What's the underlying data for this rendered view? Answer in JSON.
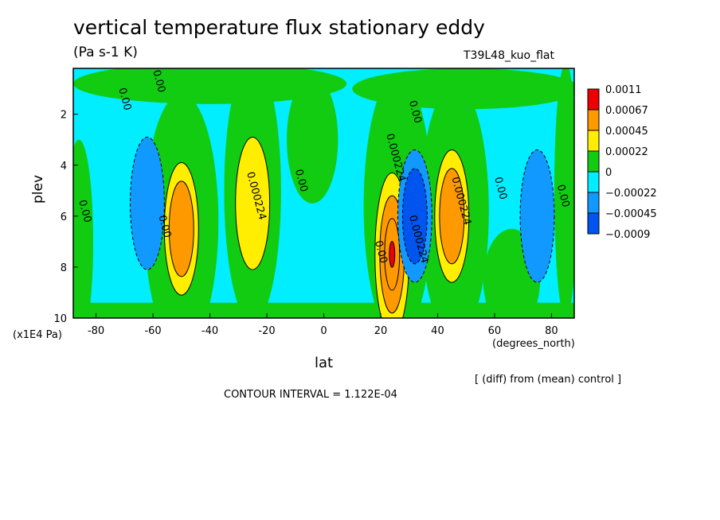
{
  "chart_data": {
    "type": "heatmap",
    "title": "vertical temperature flux stationary eddy",
    "units": "(Pa s-1 K)",
    "run_label": "T39L48_kuo_flat",
    "xlabel": "lat",
    "x_unit": "(degrees_north)",
    "ylabel": "plev",
    "y_unit": "(x1E4 Pa)",
    "xlim": [
      -88,
      88
    ],
    "ylim": [
      10,
      0.2
    ],
    "x_ticks": [
      "-80",
      "-60",
      "-40",
      "-20",
      "0",
      "20",
      "40",
      "60",
      "80"
    ],
    "y_ticks": [
      "2",
      "4",
      "6",
      "8",
      "10"
    ],
    "x_tick_values": [
      -80,
      -60,
      -40,
      -20,
      0,
      20,
      40,
      60,
      80
    ],
    "y_tick_values": [
      2,
      4,
      6,
      8,
      10
    ],
    "note": "[ (diff) from (mean) control ]",
    "contour_interval": "CONTOUR INTERVAL = 1.122E-04",
    "legend": {
      "placement": "right",
      "levels": [
        "0.0011",
        "0.00067",
        "0.00045",
        "0.00022",
        "0",
        "−0.00022",
        "−0.00045",
        "−0.0009"
      ],
      "colors": [
        "#ee0000",
        "#ff9900",
        "#ffee00",
        "#11cc11",
        "#00eeff",
        "#1199ff",
        "#0055ee"
      ]
    },
    "background_color": "#00eeff",
    "features": [
      {
        "lat": -50,
        "plev": 6.5,
        "level": 2
      },
      {
        "lat": -25,
        "plev": 5.5,
        "level": 1
      },
      {
        "lat": -62,
        "plev": 5.5,
        "level": -1
      },
      {
        "lat": 24,
        "plev": 7.5,
        "level": 4
      },
      {
        "lat": 32,
        "plev": 6.0,
        "level": -2
      },
      {
        "lat": 45,
        "plev": 6.0,
        "level": 2
      },
      {
        "lat": 75,
        "plev": 6.0,
        "level": -1
      }
    ],
    "contour_labels": [
      "0.00",
      "0.00",
      "0.00",
      "0.00",
      "0.00",
      "0.00",
      "0.00",
      "0.00",
      "0.00",
      "0.000224",
      "0.000224",
      "0.000224",
      "0.000224"
    ]
  }
}
